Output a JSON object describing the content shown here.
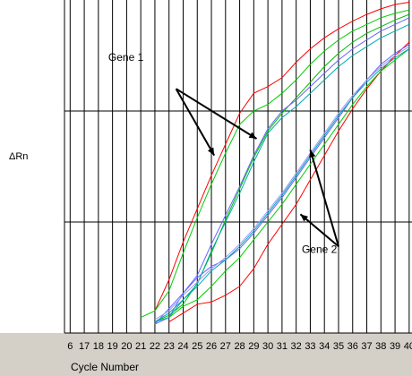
{
  "chart_data": {
    "type": "line",
    "title": "",
    "xlabel": "Cycle Number",
    "ylabel": "ΔRn",
    "x_ticks": [
      17,
      18,
      19,
      20,
      21,
      22,
      23,
      24,
      25,
      26,
      27,
      28,
      29,
      30,
      31,
      32,
      33,
      34,
      35,
      36,
      37,
      38,
      39,
      40
    ],
    "x_tick_labels": [
      "17",
      "18",
      "19",
      "20",
      "21",
      "22",
      "23",
      "24",
      "25",
      "26",
      "27",
      "28",
      "29",
      "30",
      "31",
      "32",
      "33",
      "34",
      "35",
      "36",
      "37",
      "38",
      "39",
      "40"
    ],
    "partial_tick_label": "6",
    "xlim": [
      15.6,
      40.2
    ],
    "ylim": [
      0,
      3
    ],
    "grid": true,
    "annotations": [
      {
        "text": "Gene 1",
        "x": 18.7,
        "y": 2.45,
        "arrows_to": [
          [
            26.2,
            1.6
          ],
          [
            29.2,
            1.75
          ]
        ],
        "arrow_from": [
          23.5,
          2.2
        ]
      },
      {
        "text": "Gene 2",
        "x": 32.4,
        "y": 0.72,
        "arrows_to": [
          [
            33.0,
            1.65
          ],
          [
            32.3,
            1.07
          ]
        ],
        "arrow_from": [
          35.0,
          0.78
        ]
      }
    ],
    "series": [
      {
        "color": "#ff0000",
        "x": [
          22,
          23,
          24,
          25,
          26,
          27,
          28,
          29,
          30,
          31,
          32,
          33,
          34,
          35,
          36,
          37,
          38,
          39,
          40
        ],
        "y": [
          0.2,
          0.48,
          0.82,
          1.12,
          1.42,
          1.7,
          1.98,
          2.16,
          2.22,
          2.3,
          2.44,
          2.56,
          2.66,
          2.74,
          2.81,
          2.87,
          2.92,
          2.96,
          2.98
        ]
      },
      {
        "color": "#00cc00",
        "x": [
          21,
          22,
          23,
          24,
          25,
          26,
          27,
          28,
          29,
          30,
          31,
          32,
          33,
          34,
          35,
          36,
          37,
          38,
          39,
          40
        ],
        "y": [
          0.14,
          0.2,
          0.38,
          0.72,
          1.04,
          1.34,
          1.62,
          1.88,
          2.0,
          2.06,
          2.16,
          2.28,
          2.42,
          2.54,
          2.64,
          2.72,
          2.78,
          2.84,
          2.88,
          2.91
        ]
      },
      {
        "color": "#00bb00",
        "x": [
          22,
          23,
          24,
          25,
          26,
          27,
          28,
          29,
          30,
          31,
          32,
          33,
          34,
          35,
          36,
          37,
          38,
          39,
          40
        ],
        "y": [
          0.1,
          0.16,
          0.26,
          0.45,
          0.72,
          1.02,
          1.3,
          1.58,
          1.82,
          1.98,
          2.12,
          2.26,
          2.4,
          2.52,
          2.62,
          2.7,
          2.76,
          2.82,
          2.87
        ]
      },
      {
        "color": "#6666ff",
        "x": [
          22,
          23,
          24,
          25,
          26,
          27,
          28,
          29,
          30,
          31,
          32,
          33,
          34,
          35,
          36,
          37,
          38,
          39,
          40
        ],
        "y": [
          0.08,
          0.14,
          0.36,
          0.52,
          0.8,
          1.06,
          1.32,
          1.6,
          1.84,
          2.0,
          2.1,
          2.22,
          2.34,
          2.46,
          2.56,
          2.64,
          2.72,
          2.78,
          2.84
        ]
      },
      {
        "color": "#00aaaa",
        "x": [
          22,
          23,
          24,
          25,
          26,
          27,
          28,
          29,
          30,
          31,
          32,
          33,
          34,
          35,
          36,
          37,
          38,
          39,
          40
        ],
        "y": [
          0.1,
          0.14,
          0.3,
          0.44,
          0.74,
          1.0,
          1.26,
          1.54,
          1.8,
          1.94,
          2.04,
          2.16,
          2.28,
          2.4,
          2.5,
          2.58,
          2.66,
          2.72,
          2.78
        ]
      },
      {
        "color": "#ff0000",
        "x": [
          23,
          24,
          25,
          26,
          27,
          28,
          29,
          30,
          31,
          32,
          33,
          34,
          35,
          36,
          37,
          38,
          39,
          40
        ],
        "y": [
          0.1,
          0.18,
          0.26,
          0.28,
          0.34,
          0.42,
          0.58,
          0.8,
          0.98,
          1.16,
          1.38,
          1.6,
          1.82,
          2.02,
          2.2,
          2.36,
          2.5,
          2.62
        ]
      },
      {
        "color": "#00cc00",
        "x": [
          23,
          24,
          25,
          26,
          27,
          28,
          29,
          30,
          31,
          32,
          33,
          34,
          35,
          36,
          37,
          38,
          39,
          40
        ],
        "y": [
          0.14,
          0.24,
          0.3,
          0.42,
          0.56,
          0.68,
          0.84,
          1.0,
          1.16,
          1.34,
          1.52,
          1.7,
          1.88,
          2.06,
          2.22,
          2.36,
          2.46,
          2.56
        ]
      },
      {
        "color": "#6666ff",
        "x": [
          22,
          23,
          24,
          25,
          26,
          27,
          28,
          29,
          30,
          31,
          32,
          33,
          34,
          35,
          36,
          37,
          38,
          39,
          40
        ],
        "y": [
          0.08,
          0.22,
          0.36,
          0.5,
          0.6,
          0.66,
          0.76,
          0.9,
          1.06,
          1.22,
          1.4,
          1.58,
          1.76,
          1.94,
          2.12,
          2.28,
          2.42,
          2.52,
          2.6
        ]
      },
      {
        "color": "#00aaaa",
        "x": [
          22,
          23,
          24,
          25,
          26,
          27,
          28,
          29,
          30,
          31,
          32,
          33,
          34,
          35,
          36,
          37,
          38,
          39,
          40
        ],
        "y": [
          0.1,
          0.18,
          0.3,
          0.42,
          0.56,
          0.66,
          0.78,
          0.92,
          1.08,
          1.24,
          1.42,
          1.6,
          1.78,
          1.96,
          2.12,
          2.26,
          2.38,
          2.48,
          2.56
        ]
      },
      {
        "color": "#9999ff",
        "x": [
          22,
          23,
          24,
          25,
          26,
          27,
          28,
          29,
          30,
          31,
          32,
          33,
          34,
          35,
          36,
          37,
          38,
          39,
          40
        ],
        "y": [
          0.12,
          0.2,
          0.34,
          0.46,
          0.58,
          0.68,
          0.8,
          0.94,
          1.1,
          1.26,
          1.44,
          1.62,
          1.8,
          1.98,
          2.14,
          2.28,
          2.4,
          2.5,
          2.58
        ]
      }
    ]
  }
}
